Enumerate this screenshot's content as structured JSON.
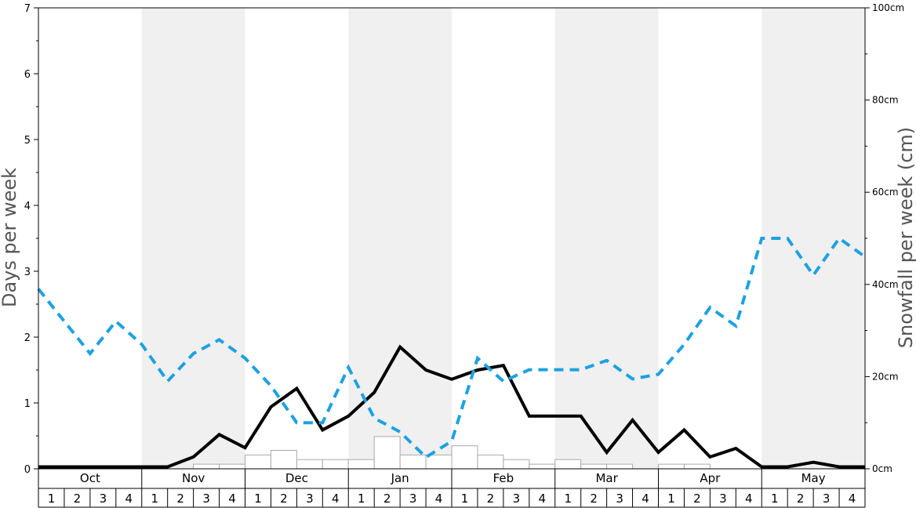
{
  "chart_data": {
    "type": "bar",
    "left_axis": {
      "label": "Days per week",
      "range": [
        0,
        7
      ],
      "ticks": [
        "0",
        "1",
        "2",
        "3",
        "4",
        "5",
        "6",
        "7"
      ]
    },
    "right_axis": {
      "label": "Snowfall per week (cm)",
      "range": [
        0,
        100
      ],
      "ticks": [
        "0cm",
        "20cm",
        "40cm",
        "60cm",
        "80cm",
        "100cm"
      ]
    },
    "months": [
      "Oct",
      "Nov",
      "Dec",
      "Jan",
      "Feb",
      "Mar",
      "Apr",
      "May"
    ],
    "week_labels": [
      "1",
      "2",
      "3",
      "4"
    ],
    "shaded_months": [
      "Nov",
      "Jan",
      "Mar",
      "May"
    ],
    "shade_color": "#f0f0f0",
    "series": [
      {
        "kind": "bar",
        "axis": "right",
        "color": "#ffffff",
        "stroke": "#aaaaaa",
        "values": [
          0,
          0,
          0,
          0,
          0,
          0,
          1,
          1,
          3,
          4,
          2,
          2,
          2,
          7,
          3,
          3,
          5,
          3,
          2,
          1,
          2,
          1,
          1,
          0,
          1,
          1,
          0,
          0,
          0,
          0,
          0,
          0
        ]
      },
      {
        "kind": "line",
        "axis": "left",
        "color": "#000000",
        "dashed": false,
        "values": [
          0.03,
          0.03,
          0.03,
          0.03,
          0.03,
          0.03,
          0.18,
          0.52,
          0.32,
          0.94,
          1.22,
          0.59,
          0.8,
          1.16,
          1.85,
          1.5,
          1.36,
          1.5,
          1.57,
          0.8,
          0.8,
          0.8,
          0.25,
          0.74,
          0.25,
          0.59,
          0.18,
          0.31,
          0.03,
          0.03,
          0.1,
          0.03,
          0.03
        ]
      },
      {
        "kind": "line",
        "axis": "right",
        "color": "#1da1e2",
        "dashed": true,
        "values": [
          39,
          32,
          25,
          32,
          27,
          19,
          25,
          28,
          24,
          18,
          10,
          10,
          22,
          11,
          8,
          2.5,
          6,
          24,
          19,
          21.5,
          21.5,
          21.5,
          23.5,
          19.5,
          20.5,
          27,
          35,
          31,
          50,
          50,
          42,
          50,
          46
        ]
      }
    ]
  }
}
